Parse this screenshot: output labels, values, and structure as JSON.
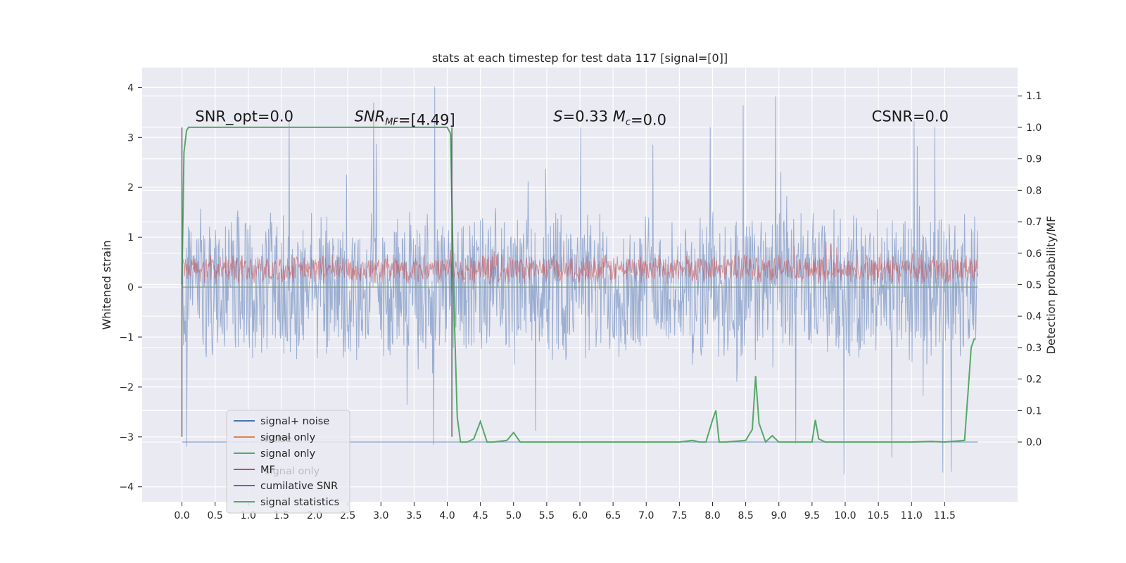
{
  "chart_data": {
    "type": "line",
    "title": "stats at each timestep for test data 117 [signal=[0]]",
    "ylabel_left": "Whitened strain",
    "ylabel_right": "Detection probability/MF",
    "xlim": [
      -0.6,
      12.6
    ],
    "ylim_left": [
      -4.3,
      4.4
    ],
    "ylim_right": [
      -0.19,
      1.19
    ],
    "x_ticks": [
      0.0,
      0.5,
      1.0,
      1.5,
      2.0,
      2.5,
      3.0,
      3.5,
      4.0,
      4.5,
      5.0,
      5.5,
      6.0,
      6.5,
      7.0,
      7.5,
      8.0,
      8.5,
      9.0,
      9.5,
      10.0,
      10.5,
      11.0,
      11.5
    ],
    "x_tick_labels": [
      "0.0",
      "0.5",
      "1.0",
      "1.5",
      "2.0",
      "2.5",
      "3.0",
      "3.5",
      "4.0",
      "4.5",
      "5.0",
      "5.5",
      "6.0",
      "6.5",
      "7.0",
      "7.5",
      "8.0",
      "8.5",
      "9.0",
      "9.5",
      "10.0",
      "10.5",
      "11.0",
      "11.5"
    ],
    "y_left_ticks": [
      -4,
      -3,
      -2,
      -1,
      0,
      1,
      2,
      3,
      4
    ],
    "y_left_tick_labels": [
      "−4",
      "−3",
      "−2",
      "−1",
      "0",
      "1",
      "2",
      "3",
      "4"
    ],
    "y_right_ticks": [
      0.0,
      0.1,
      0.2,
      0.3,
      0.4,
      0.5,
      0.6,
      0.7,
      0.8,
      0.9,
      1.0,
      1.1
    ],
    "y_right_tick_labels": [
      "0.0",
      "0.1",
      "0.2",
      "0.3",
      "0.4",
      "0.5",
      "0.6",
      "0.7",
      "0.8",
      "0.9",
      "1.0",
      "1.1"
    ],
    "grid": true,
    "annotations": [
      {
        "text": "SNR_opt=0.0",
        "x": 0.2,
        "y": 3.32
      },
      {
        "text": "SNR_MF=[4.49]",
        "x": 2.6,
        "y": 3.32
      },
      {
        "text": "S=0.33   M_c=0.0",
        "x": 5.6,
        "y": 3.32
      },
      {
        "text": "CSNR=0.0",
        "x": 10.4,
        "y": 3.32
      }
    ],
    "vertical_markers": [
      {
        "x": 0.0,
        "y_range": [
          -3.0,
          3.2
        ]
      },
      {
        "x": 4.07,
        "y_range": [
          -3.0,
          3.2
        ]
      }
    ],
    "series": [
      {
        "name": "signal+ noise",
        "color": "#4c72b0",
        "axis": "left",
        "kind": "noise",
        "x_range": [
          0.0,
          12.0
        ],
        "typical_range": [
          -1.7,
          1.7
        ],
        "extremes_range": [
          -3.8,
          4.1
        ]
      },
      {
        "name": "signal only",
        "color": "#dd8452",
        "axis": "left",
        "kind": "flat",
        "x_range": [
          0.0,
          12.0
        ],
        "values": [
          0.0
        ]
      },
      {
        "name": "signal only",
        "color": "#55a868",
        "axis": "left",
        "kind": "flat",
        "x_range": [
          0.0,
          12.0
        ],
        "values": [
          0.0
        ]
      },
      {
        "name": "MF",
        "color": "#c44e52",
        "axis": "right",
        "kind": "noise",
        "x_range": [
          0.0,
          12.0
        ],
        "typical_range": [
          0.5,
          0.6
        ],
        "extremes_range": [
          0.5,
          0.64
        ]
      },
      {
        "name": "cumilative SNR",
        "color": "#4c72b0",
        "axis": "right",
        "kind": "flat",
        "x_range": [
          0.0,
          12.0
        ],
        "values": [
          0.0
        ]
      },
      {
        "name": "signal statistics",
        "color": "#55a868",
        "axis": "right",
        "kind": "line",
        "x": [
          0.0,
          0.03,
          0.07,
          0.1,
          0.5,
          1.0,
          2.0,
          3.0,
          3.9,
          4.0,
          4.05,
          4.1,
          4.15,
          4.2,
          4.3,
          4.4,
          4.5,
          4.6,
          4.7,
          4.9,
          5.0,
          5.1,
          5.3,
          5.5,
          6.0,
          6.5,
          7.0,
          7.5,
          7.7,
          7.8,
          7.9,
          8.0,
          8.05,
          8.1,
          8.2,
          8.5,
          8.6,
          8.65,
          8.7,
          8.8,
          8.9,
          9.0,
          9.1,
          9.3,
          9.5,
          9.55,
          9.6,
          9.7,
          10.0,
          10.5,
          11.0,
          11.3,
          11.5,
          11.8,
          11.85,
          11.9,
          11.95
        ],
        "y": [
          0.5,
          0.92,
          0.99,
          1.0,
          1.0,
          1.0,
          1.0,
          1.0,
          1.0,
          1.0,
          0.98,
          0.45,
          0.08,
          0.0,
          0.0,
          0.01,
          0.065,
          0.0,
          0.0,
          0.005,
          0.03,
          0.0,
          0.0,
          0.0,
          0.0,
          0.0,
          0.0,
          0.0,
          0.005,
          0.0,
          0.0,
          0.07,
          0.1,
          0.0,
          0.0,
          0.005,
          0.04,
          0.21,
          0.06,
          0.0,
          0.02,
          0.0,
          0.0,
          0.0,
          0.0,
          0.07,
          0.01,
          0.0,
          0.0,
          0.0,
          0.0,
          0.002,
          0.0,
          0.005,
          0.15,
          0.3,
          0.33
        ]
      }
    ],
    "legend": {
      "placement": "lower-left",
      "entries": [
        {
          "label": "signal+ noise",
          "color": "#4c72b0"
        },
        {
          "label": "signal only",
          "color": "#dd8452"
        },
        {
          "label": "signal only",
          "color": "#55a868"
        },
        {
          "label": "MF",
          "color": "#c44e52"
        },
        {
          "label": "cumilative SNR",
          "color": "#4c72b0"
        },
        {
          "label": "signal statistics",
          "color": "#55a868"
        }
      ],
      "ghost_entries": [
        {
          "label": "noise",
          "row": 1
        },
        {
          "label": "signal only",
          "row": 3
        }
      ]
    },
    "colors": {
      "plot_background": "#eaeaf2",
      "grid": "#ffffff",
      "axis_text": "#262626"
    }
  }
}
